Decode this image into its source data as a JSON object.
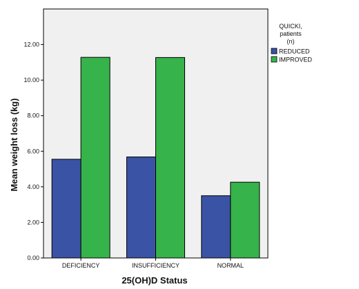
{
  "chart_data": {
    "type": "bar",
    "categories": [
      "DEFICIENCY",
      "INSUFFICIENCY",
      "NORMAL"
    ],
    "series": [
      {
        "name": "REDUCED",
        "values": [
          5.55,
          5.68,
          3.5
        ],
        "color": "#3b53a4"
      },
      {
        "name": "IMPROVED",
        "values": [
          11.28,
          11.27,
          4.26
        ],
        "color": "#36b34a"
      }
    ],
    "xlabel": "25(OH)D Status",
    "ylabel": "Mean weight loss (kg)",
    "ylim": [
      0,
      14
    ],
    "yticks": [
      "0.00",
      "2.00",
      "4.00",
      "6.00",
      "8.00",
      "10.00",
      "12.00"
    ],
    "legend": {
      "title_lines": [
        "QUICKI,",
        "patients",
        "(n)"
      ],
      "placement": "right"
    },
    "plot_background": "#f0f0f0",
    "grid": false
  }
}
